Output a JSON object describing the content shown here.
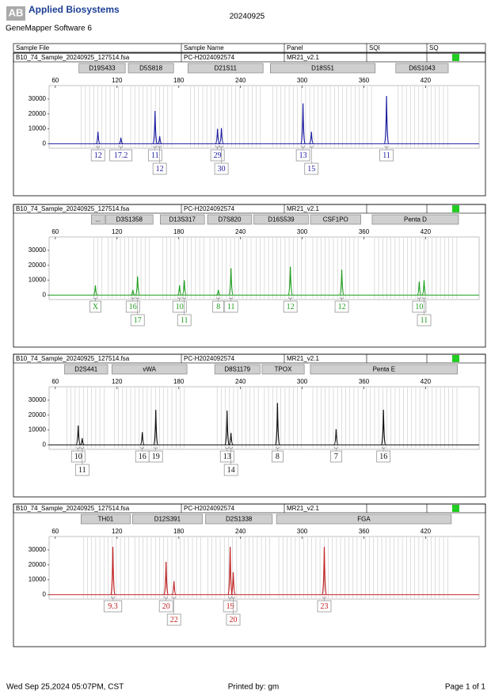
{
  "header": {
    "logo": "Applied Biosystems",
    "software": "GeneMapper Software 6",
    "date": "20240925"
  },
  "table_header": [
    "Sample File",
    "Sample Name",
    "Panel",
    "SQI",
    "SQ"
  ],
  "footer": {
    "printed_on": "Wed Sep 25,2024 05:07PM, CST",
    "printed_by": "Printed by: gm",
    "page": "Page 1 of 1"
  },
  "chart_data": [
    {
      "type": "electropherogram",
      "sample_file": "B10_74_Sample_20240925_127514.fsa",
      "sample_name": "PC-H2024092574",
      "panel": "MR21_v2.1",
      "color": "#1c1ca0",
      "xlim": [
        54,
        472
      ],
      "xticks": [
        60,
        120,
        180,
        240,
        300,
        360,
        420
      ],
      "ylim": [
        -3000,
        39000
      ],
      "yticks": [
        0,
        10000,
        20000,
        30000
      ],
      "loci": [
        {
          "name": "D19S433",
          "range": [
            83,
            128
          ]
        },
        {
          "name": "D5S818",
          "range": [
            131,
            175
          ]
        },
        {
          "name": "D21S11",
          "range": [
            189,
            262
          ]
        },
        {
          "name": "D18S51",
          "range": [
            269,
            371
          ]
        },
        {
          "name": "D6S1043",
          "range": [
            391,
            442
          ]
        }
      ],
      "peaks": [
        {
          "allele": "12",
          "size": 101.5,
          "height": 8000
        },
        {
          "allele": "17.2",
          "size": 123.8,
          "height": 4000
        },
        {
          "allele": "11",
          "size": 157,
          "height": 22000
        },
        {
          "allele": "12",
          "size": 161.5,
          "height": 5000
        },
        {
          "allele": "29",
          "size": 217.7,
          "height": 10000
        },
        {
          "allele": "30",
          "size": 221.5,
          "height": 10500
        },
        {
          "allele": "13",
          "size": 300.8,
          "height": 27000
        },
        {
          "allele": "15",
          "size": 309,
          "height": 8000
        },
        {
          "allele": "11",
          "size": 382,
          "height": 32000
        }
      ]
    },
    {
      "type": "electropherogram",
      "sample_file": "B10_74_Sample_20240925_127514.fsa",
      "sample_name": "PC-H2024092574",
      "panel": "MR21_v2.1",
      "color": "#1e9e1e",
      "xlim": [
        54,
        472
      ],
      "xticks": [
        60,
        120,
        180,
        240,
        300,
        360,
        420
      ],
      "ylim": [
        -3000,
        39000
      ],
      "yticks": [
        0,
        10000,
        20000,
        30000
      ],
      "loci": [
        {
          "name": "...",
          "range": [
            95,
            108
          ]
        },
        {
          "name": "D3S1358",
          "range": [
            109,
            155
          ]
        },
        {
          "name": "D13S317",
          "range": [
            162,
            205
          ]
        },
        {
          "name": "D7S820",
          "range": [
            208,
            251
          ]
        },
        {
          "name": "D16S539",
          "range": [
            253,
            306
          ]
        },
        {
          "name": "CSF1PO",
          "range": [
            308,
            357
          ]
        },
        {
          "name": "Penta D",
          "range": [
            368,
            452
          ]
        }
      ],
      "peaks": [
        {
          "allele": "X",
          "size": 99,
          "height": 6500
        },
        {
          "allele": "16",
          "size": 135.4,
          "height": 3500
        },
        {
          "allele": "17",
          "size": 140,
          "height": 12500
        },
        {
          "allele": "10",
          "size": 180.8,
          "height": 6500
        },
        {
          "allele": "11",
          "size": 185.4,
          "height": 10000
        },
        {
          "allele": "8",
          "size": 218.5,
          "height": 3500
        },
        {
          "allele": "11",
          "size": 230.8,
          "height": 18000
        },
        {
          "allele": "12",
          "size": 288.5,
          "height": 19000
        },
        {
          "allele": "12",
          "size": 338.5,
          "height": 17000
        },
        {
          "allele": "10",
          "size": 413.8,
          "height": 9000
        },
        {
          "allele": "11",
          "size": 418.5,
          "height": 10000
        }
      ]
    },
    {
      "type": "electropherogram",
      "sample_file": "B10_74_Sample_20240925_127514.fsa",
      "sample_name": "PC-H2024092574",
      "panel": "MR21_v2.1",
      "color": "#111111",
      "xlim": [
        54,
        472
      ],
      "xticks": [
        60,
        120,
        180,
        240,
        300,
        360,
        420
      ],
      "ylim": [
        -3000,
        39000
      ],
      "yticks": [
        0,
        10000,
        20000,
        30000
      ],
      "loci": [
        {
          "name": "D2S441",
          "range": [
            69,
            111
          ]
        },
        {
          "name": "vWA",
          "range": [
            115,
            188
          ]
        },
        {
          "name": "D8S1179",
          "range": [
            215,
            259
          ]
        },
        {
          "name": "TPOX",
          "range": [
            261,
            302
          ]
        },
        {
          "name": "Penta E",
          "range": [
            308,
            451
          ]
        }
      ],
      "peaks": [
        {
          "allele": "10",
          "size": 82.3,
          "height": 13000
        },
        {
          "allele": "11",
          "size": 86.2,
          "height": 4500
        },
        {
          "allele": "16",
          "size": 144.6,
          "height": 8500
        },
        {
          "allele": "19",
          "size": 157.7,
          "height": 23500
        },
        {
          "allele": "13",
          "size": 227,
          "height": 23000
        },
        {
          "allele": "14",
          "size": 230.8,
          "height": 8000
        },
        {
          "allele": "8",
          "size": 276,
          "height": 28000
        },
        {
          "allele": "7",
          "size": 333,
          "height": 10500
        },
        {
          "allele": "16",
          "size": 379,
          "height": 23500
        }
      ]
    },
    {
      "type": "electropherogram",
      "sample_file": "B10_74_Sample_20240925_127514.fsa",
      "sample_name": "PC-H2024092574",
      "panel": "MR21_v2.1",
      "color": "#c02020",
      "xlim": [
        54,
        472
      ],
      "xticks": [
        60,
        120,
        180,
        240,
        300,
        360,
        420
      ],
      "ylim": [
        -3000,
        39000
      ],
      "yticks": [
        0,
        10000,
        20000,
        30000
      ],
      "loci": [
        {
          "name": "TH01",
          "range": [
            85,
            133
          ]
        },
        {
          "name": "D12S391",
          "range": [
            135,
            203
          ]
        },
        {
          "name": "D2S1338",
          "range": [
            206,
            271
          ]
        },
        {
          "name": "FGA",
          "range": [
            275,
            445
          ]
        }
      ],
      "peaks": [
        {
          "allele": "9.3",
          "size": 116,
          "height": 32000
        },
        {
          "allele": "20",
          "size": 167.7,
          "height": 22000
        },
        {
          "allele": "22",
          "size": 175.4,
          "height": 9000
        },
        {
          "allele": "19",
          "size": 230,
          "height": 32000
        },
        {
          "allele": "20",
          "size": 233,
          "height": 15000
        },
        {
          "allele": "23",
          "size": 321.5,
          "height": 32000
        }
      ]
    }
  ]
}
